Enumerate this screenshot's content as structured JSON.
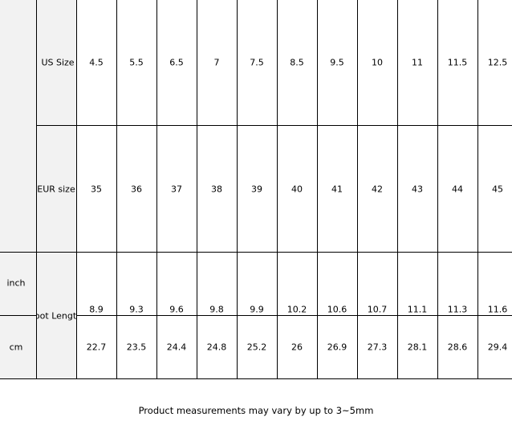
{
  "size_chart": {
    "group_label": "Foot Length",
    "rows": [
      {
        "label": "US Size",
        "values": [
          "4.5",
          "5.5",
          "6.5",
          "7",
          "7.5",
          "8.5",
          "9.5",
          "10",
          "11",
          "11.5",
          "12.5"
        ]
      },
      {
        "label": "EUR size",
        "values": [
          "35",
          "36",
          "37",
          "38",
          "39",
          "40",
          "41",
          "42",
          "43",
          "44",
          "45"
        ]
      },
      {
        "label": "inch",
        "values": [
          "8.9",
          "9.3",
          "9.6",
          "9.8",
          "9.9",
          "10.2",
          "10.6",
          "10.7",
          "11.1",
          "11.3",
          "11.6"
        ]
      },
      {
        "label": "cm",
        "values": [
          "22.7",
          "23.5",
          "24.4",
          "24.8",
          "25.2",
          "26",
          "26.9",
          "27.3",
          "28.1",
          "28.6",
          "29.4"
        ]
      }
    ]
  },
  "note": "Product measurements may vary by up to 3~5mm",
  "colors": {
    "header_bg": "#f2f2f2",
    "grid": "#000000"
  }
}
